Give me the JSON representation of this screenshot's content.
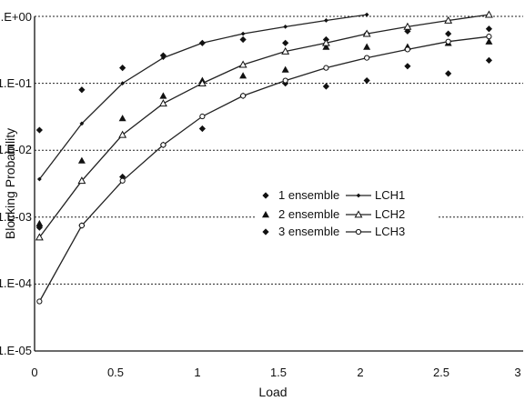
{
  "chart_data": {
    "type": "scatter",
    "title": "",
    "xlabel": "Load",
    "ylabel": "Blocking Probability",
    "xlim": [
      0,
      3
    ],
    "ylim": [
      1e-05,
      1
    ],
    "yscale": "log",
    "x_ticks": [
      "0",
      "0.5",
      "1",
      "1.5",
      "2",
      "2.5",
      "3"
    ],
    "y_ticks": [
      "1.E-05",
      "1.E-04",
      "1.E-03",
      "1.E-02",
      "1.E-01",
      "1.E+00"
    ],
    "grid": "horizontal dotted",
    "legend_position": "center-right",
    "series": [
      {
        "name": "1 ensemble",
        "kind": "points",
        "marker": "diamond",
        "x": [
          0.03,
          0.29,
          0.54,
          0.79,
          1.03,
          1.28,
          1.54,
          1.79,
          2.04,
          2.29,
          2.54,
          2.79
        ],
        "y": [
          0.02,
          0.08,
          0.17,
          0.26,
          0.4,
          0.45,
          0.4,
          0.45,
          0.55,
          0.6,
          0.55,
          0.65
        ]
      },
      {
        "name": "2 ensemble",
        "kind": "points",
        "marker": "triangle",
        "x": [
          0.03,
          0.29,
          0.54,
          0.79,
          1.03,
          1.28,
          1.54,
          1.79,
          2.04,
          2.29,
          2.54,
          2.79
        ],
        "y": [
          0.0008,
          0.007,
          0.03,
          0.065,
          0.11,
          0.13,
          0.16,
          0.35,
          0.35,
          0.35,
          0.4,
          0.42
        ]
      },
      {
        "name": "3 ensemble",
        "kind": "points",
        "marker": "diamond",
        "x": [
          0.03,
          0.29,
          0.54,
          0.79,
          1.03,
          1.28,
          1.54,
          1.79,
          2.04,
          2.29,
          2.54,
          2.79
        ],
        "y": [
          0.0007,
          0.00075,
          0.004,
          0.012,
          0.021,
          0.065,
          0.1,
          0.09,
          0.11,
          0.18,
          0.14,
          0.22
        ]
      },
      {
        "name": "LCH1",
        "kind": "line",
        "marker": "diamond-small",
        "x": [
          0.03,
          0.29,
          0.54,
          0.79,
          1.03,
          1.28,
          1.54,
          1.79,
          2.04
        ],
        "y": [
          0.0037,
          0.025,
          0.1,
          0.24,
          0.4,
          0.55,
          0.7,
          0.87,
          1.06
        ]
      },
      {
        "name": "LCH2",
        "kind": "line",
        "marker": "triangle-open",
        "x": [
          0.03,
          0.29,
          0.54,
          0.79,
          1.03,
          1.28,
          1.54,
          1.79,
          2.04,
          2.29,
          2.54,
          2.79
        ],
        "y": [
          0.0005,
          0.0035,
          0.017,
          0.05,
          0.1,
          0.19,
          0.3,
          0.4,
          0.55,
          0.7,
          0.87,
          1.06
        ]
      },
      {
        "name": "LCH3",
        "kind": "line",
        "marker": "circle-open",
        "x": [
          0.03,
          0.29,
          0.54,
          0.79,
          1.03,
          1.28,
          1.54,
          1.79,
          2.04,
          2.29,
          2.54,
          2.79
        ],
        "y": [
          5.5e-05,
          0.00075,
          0.0035,
          0.012,
          0.032,
          0.065,
          0.11,
          0.17,
          0.24,
          0.32,
          0.42,
          0.5
        ]
      }
    ]
  }
}
